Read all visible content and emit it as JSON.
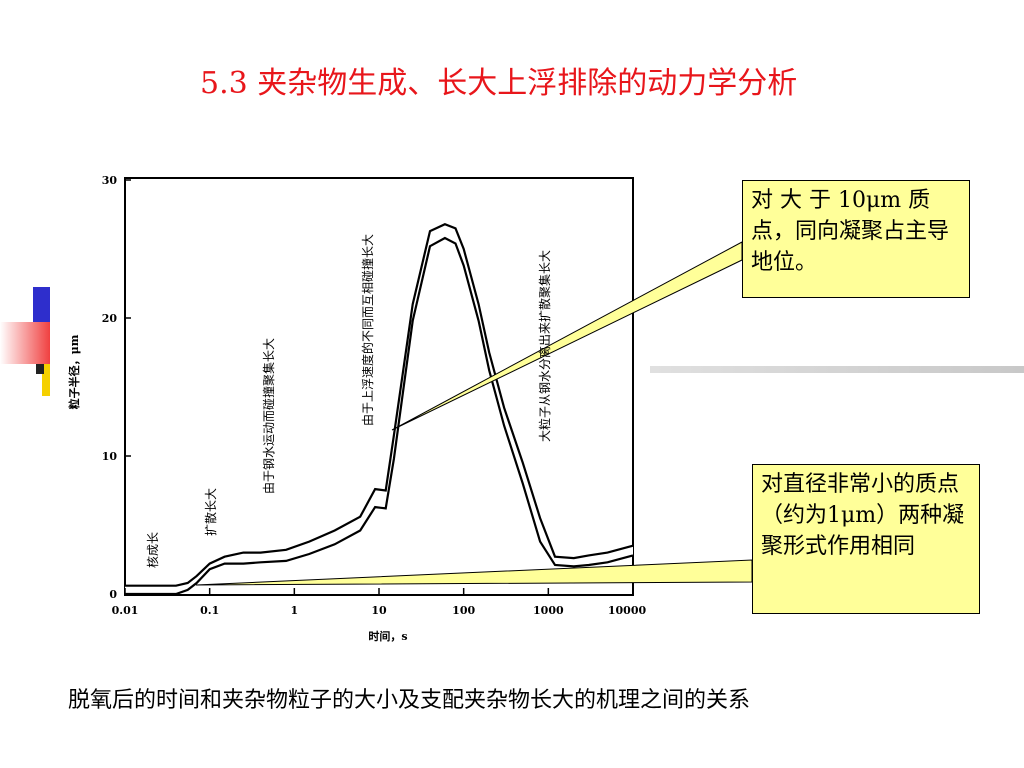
{
  "slide": {
    "title": "5.3   夹杂物生成、长大上浮排除的动力学分析",
    "caption": "脱氧后的时间和夹杂物粒子的大小及支配夹杂物长大的机理之间的关系"
  },
  "callouts": {
    "top": "对 大 于 10μm 质点，同向凝聚占主导地位。",
    "bottom": "对直径非常小的质点（约为1μm）两种凝聚形式作用相同"
  },
  "colors": {
    "title": "#e8161b",
    "callout_bg": "#ffff99",
    "deco_blue": "#2e2ecc",
    "deco_red": "#f04040",
    "deco_yellow": "#f5d000"
  },
  "chart_data": {
    "type": "line",
    "xlabel": "时间，s",
    "ylabel": "粒子半径，μm",
    "x_scale": "log",
    "xlim": [
      0.01,
      10000
    ],
    "ylim": [
      0,
      30
    ],
    "x_ticks": [
      "0.01",
      "0.1",
      "1",
      "10",
      "100",
      "1000",
      "10000"
    ],
    "y_ticks": [
      "0",
      "10",
      "20",
      "30"
    ],
    "annotations": [
      "核成长",
      "扩散长大",
      "由于钢水运动而碰撞聚集长大",
      "由于上浮速度的不同而互相碰撞长大",
      "大粒子从钢水分离出来扩散聚集长大"
    ],
    "series": [
      {
        "x": [
          0.01,
          0.04,
          0.055,
          0.07,
          0.1,
          0.15,
          0.25,
          0.4,
          0.8,
          1.5,
          3,
          6,
          9,
          12,
          15,
          25,
          40,
          60,
          80,
          100,
          150,
          200,
          300,
          500,
          800,
          1200,
          2000,
          3000,
          5000,
          10000
        ],
        "upper": [
          0.6,
          0.6,
          0.8,
          1.3,
          2.2,
          2.7,
          3.0,
          3.0,
          3.2,
          3.8,
          4.6,
          5.6,
          7.6,
          7.5,
          11.5,
          21,
          26.3,
          26.8,
          26.5,
          25.0,
          21.0,
          17.5,
          13.5,
          9.5,
          5.5,
          2.7,
          2.6,
          2.8,
          3.0,
          3.5
        ],
        "lower": [
          0.0,
          0.0,
          0.3,
          0.8,
          1.8,
          2.2,
          2.2,
          2.3,
          2.4,
          2.9,
          3.6,
          4.6,
          6.3,
          6.2,
          9.8,
          19.8,
          25.2,
          25.8,
          25.4,
          23.8,
          19.8,
          16.2,
          12.2,
          8.0,
          3.8,
          2.1,
          2.0,
          2.1,
          2.3,
          2.8
        ]
      }
    ]
  }
}
